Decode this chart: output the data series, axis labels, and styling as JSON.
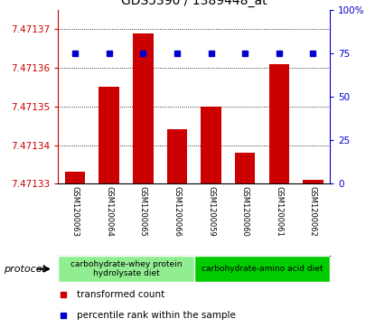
{
  "title": "GDS5390 / 1389448_at",
  "samples": [
    "GSM1200063",
    "GSM1200064",
    "GSM1200065",
    "GSM1200066",
    "GSM1200059",
    "GSM1200060",
    "GSM1200061",
    "GSM1200062"
  ],
  "red_values": [
    7.471333,
    7.471355,
    7.471369,
    7.471344,
    7.47135,
    7.471338,
    7.471361,
    7.471331
  ],
  "blue_values": [
    75,
    75,
    75,
    75,
    75,
    75,
    75,
    75
  ],
  "ymin": 7.47133,
  "ymax": 7.471375,
  "yticks": [
    7.47133,
    7.47134,
    7.47135,
    7.47136,
    7.47137
  ],
  "ytick_labels": [
    "7.47133",
    "7.47134",
    "7.47135",
    "7.47136",
    "7.47137"
  ],
  "right_yticks": [
    0,
    25,
    50,
    75,
    100
  ],
  "right_ytick_labels": [
    "0",
    "25",
    "50",
    "75",
    "100%"
  ],
  "legend_items": [
    {
      "label": "transformed count",
      "color": "#CC0000"
    },
    {
      "label": "percentile rank within the sample",
      "color": "#0000CC"
    }
  ],
  "bar_color": "#CC0000",
  "dot_color": "#0000CC",
  "background_color": "#ffffff",
  "plot_bg_color": "#ffffff",
  "label_area_bg": "#c8c8c8",
  "group1_color": "#90EE90",
  "group2_color": "#00CC00",
  "group1_label": "carbohydrate-whey protein\nhydrolysate diet",
  "group2_label": "carbohydrate-amino acid diet",
  "protocol_label": "protocol",
  "title_fontsize": 10,
  "tick_fontsize": 7.5,
  "sample_fontsize": 6,
  "group_fontsize": 6.5,
  "legend_fontsize": 7.5
}
